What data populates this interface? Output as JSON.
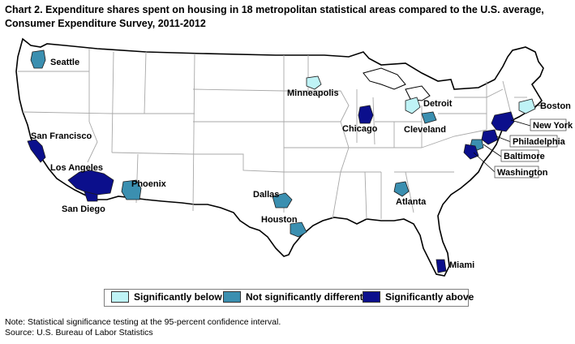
{
  "title": {
    "line1": "Chart 2. Expenditure shares spent on housing in 18 metropolitan statistical areas compared to the U.S. average,",
    "line2": "Consumer Expenditure Survey, 2011-2012"
  },
  "colors": {
    "below": "#bff3f6",
    "not_different": "#3b8fb0",
    "above": "#0b0f8c",
    "state_fill": "#ffffff",
    "state_border": "#a8a8a8",
    "country_border": "#000000"
  },
  "legend": {
    "below": "Significantly below",
    "not_different": "Not significantly different",
    "above": "Significantly above"
  },
  "areas": [
    {
      "name": "Seattle",
      "category": "not_different"
    },
    {
      "name": "San Francisco",
      "category": "above"
    },
    {
      "name": "Los Angeles",
      "category": "above"
    },
    {
      "name": "San Diego",
      "category": "above"
    },
    {
      "name": "Phoenix",
      "category": "not_different"
    },
    {
      "name": "Minneapolis",
      "category": "below"
    },
    {
      "name": "Chicago",
      "category": "above"
    },
    {
      "name": "Detroit",
      "category": "below"
    },
    {
      "name": "Cleveland",
      "category": "not_different"
    },
    {
      "name": "Dallas",
      "category": "not_different"
    },
    {
      "name": "Houston",
      "category": "not_different"
    },
    {
      "name": "Atlanta",
      "category": "not_different"
    },
    {
      "name": "Miami",
      "category": "above"
    },
    {
      "name": "Boston",
      "category": "below"
    },
    {
      "name": "New York",
      "category": "above"
    },
    {
      "name": "Philadelphia",
      "category": "above"
    },
    {
      "name": "Baltimore",
      "category": "not_different"
    },
    {
      "name": "Washington",
      "category": "above"
    }
  ],
  "note": "Note: Statistical significance testing at the 95-percent confidence interval.",
  "source": "Source: U.S. Bureau of Labor Statistics"
}
